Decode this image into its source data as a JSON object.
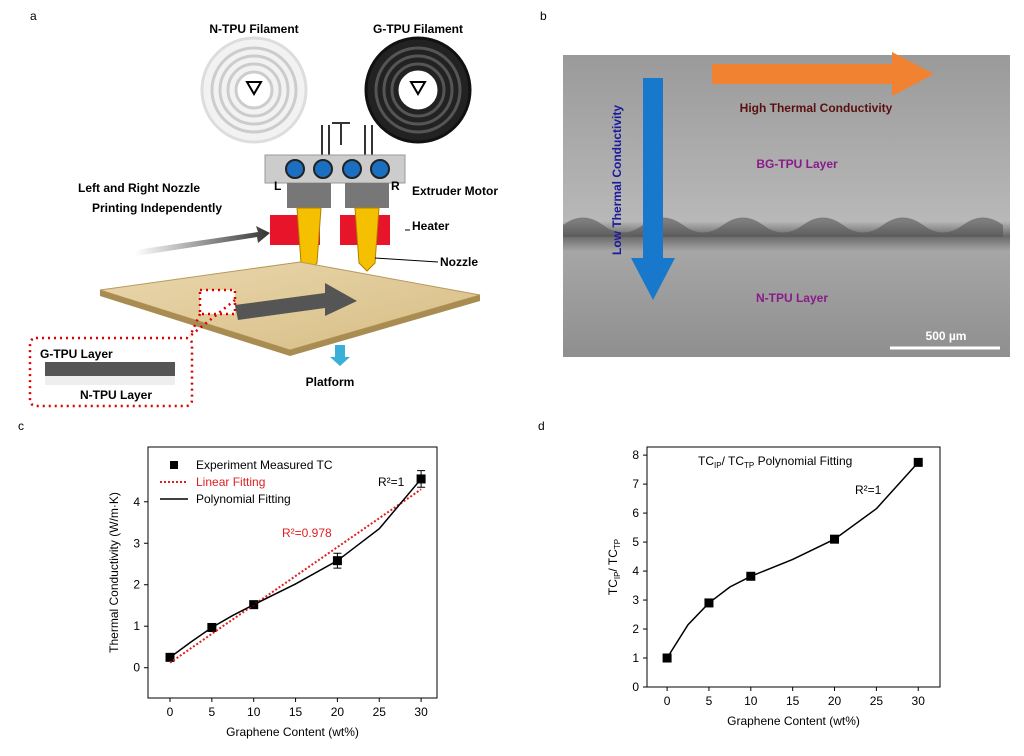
{
  "panels": {
    "a": {
      "label": "a",
      "n_filament": "N-TPU Filament",
      "g_filament": "G-TPU Filament",
      "left": "L",
      "right": "R",
      "motor": "Extruder Motor",
      "printing_1": "Left and Right Nozzle",
      "printing_2": "Printing Independently",
      "heater": "Heater",
      "nozzle": "Nozzle",
      "g_layer": "G-TPU Layer",
      "n_layer": "N-TPU Layer",
      "platform": "Platform"
    },
    "b": {
      "label": "b",
      "high": "High Thermal Conductivity",
      "bg_layer": "BG-TPU Layer",
      "low": "Low Thermal Conductivity",
      "n_layer": "N-TPU Layer",
      "scale": "500 µm"
    },
    "c": {
      "label": "c"
    },
    "d": {
      "label": "d"
    }
  },
  "chart_data": [
    {
      "type": "scatter",
      "xlabel": "Graphene Content (wt%)",
      "ylabel": "Thermal Conductivity (W/m·K)",
      "xlim": [
        -2.63,
        31.9
      ],
      "ylim": [
        -0.73,
        5.32
      ],
      "xticks": [
        0,
        5,
        10,
        15,
        20,
        25,
        30
      ],
      "yticks": [
        0,
        1,
        2,
        3,
        4
      ],
      "legend": "upper left",
      "annotations": [
        {
          "text": "R²=1",
          "color": "#000000"
        },
        {
          "text": "R²=0.978",
          "color": "#e02020"
        }
      ],
      "series": [
        {
          "name": "Experiment Measured TC",
          "color": "#000000",
          "mode": "markers",
          "x": [
            0,
            5,
            10,
            20,
            30
          ],
          "values": [
            0.25,
            0.97,
            1.52,
            2.58,
            4.55
          ],
          "errors": [
            0.05,
            0.07,
            0.07,
            0.18,
            0.2
          ]
        },
        {
          "name": "Linear Fitting",
          "color": "#e02020",
          "mode": "line",
          "dash": true,
          "x": [
            0,
            30
          ],
          "values": [
            0.12,
            4.3
          ]
        },
        {
          "name": "Polynomial Fitting",
          "color": "#000000",
          "mode": "line",
          "x": [
            0,
            2.5,
            5,
            7.5,
            10,
            15,
            20,
            25,
            30
          ],
          "values": [
            0.25,
            0.62,
            0.97,
            1.26,
            1.52,
            2.02,
            2.58,
            3.35,
            4.55
          ]
        }
      ]
    },
    {
      "type": "scatter",
      "xlabel": "Graphene Content (wt%)",
      "ylabel": [
        "TC",
        "IP",
        "/ TC",
        "TP"
      ],
      "xlim": [
        -2.4,
        32.6
      ],
      "ylim": [
        0,
        8.28
      ],
      "xticks": [
        0,
        5,
        10,
        15,
        20,
        25,
        30
      ],
      "yticks": [
        0,
        1,
        2,
        3,
        4,
        5,
        6,
        7,
        8
      ],
      "annotations": [
        {
          "text": [
            "TC",
            "IP",
            "/ TC",
            "TP",
            " Polynomial Fitting"
          ],
          "color": "#000000"
        },
        {
          "text": "R²=1",
          "color": "#000000"
        }
      ],
      "series": [
        {
          "color": "#000000",
          "mode": "markers",
          "x": [
            0,
            5,
            10,
            20,
            30
          ],
          "values": [
            1,
            2.9,
            3.82,
            5.1,
            7.75
          ]
        },
        {
          "color": "#000000",
          "mode": "line",
          "x": [
            0,
            2.5,
            5,
            7.5,
            10,
            15,
            20,
            25,
            30
          ],
          "values": [
            1,
            2.15,
            2.9,
            3.45,
            3.82,
            4.4,
            5.1,
            6.15,
            7.75
          ]
        }
      ]
    }
  ]
}
